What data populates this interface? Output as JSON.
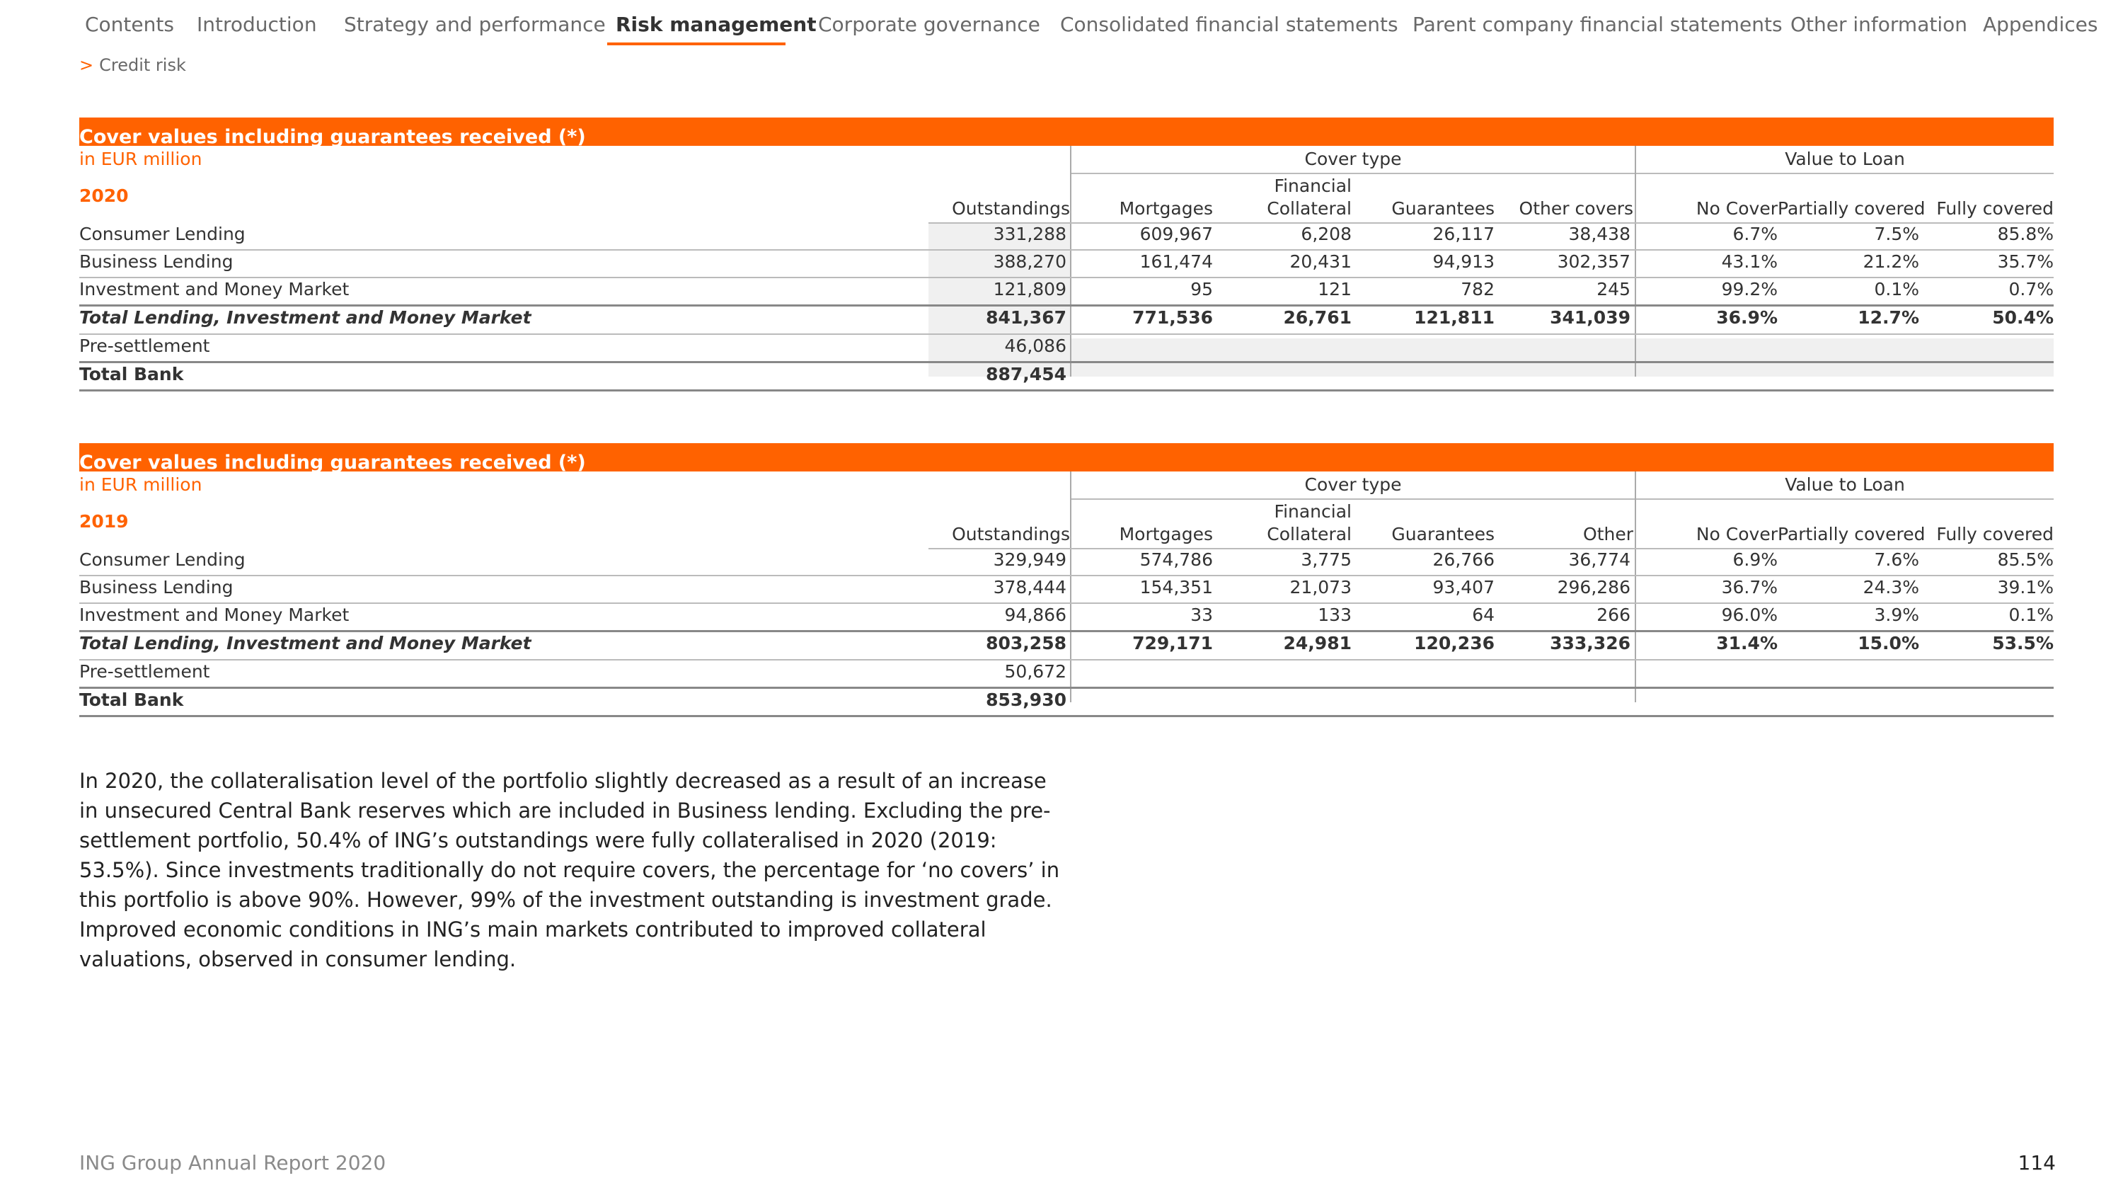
{
  "nav": {
    "items": [
      "Contents",
      "Introduction",
      "Strategy and performance",
      "Risk management",
      "Corporate governance",
      "Consolidated financial statements",
      "Parent company financial statements",
      "Other information",
      "Appendices"
    ],
    "active_index": 3
  },
  "breadcrumb": {
    "chevron": ">",
    "label": "Credit risk"
  },
  "tables": [
    {
      "title": "Cover values including guarantees received (*)",
      "unit": "in EUR million",
      "year": "2020",
      "group_cover": "Cover type",
      "group_ltv": "Value to Loan",
      "col_outstandings": "Outstandings",
      "col_mortgages": "Mortgages",
      "col_financial_1": "Financial",
      "col_financial_2": "Collateral",
      "col_guarantees": "Guarantees",
      "col_other": "Other covers",
      "col_no_cover": "No Cover",
      "col_partial": "Partially covered",
      "col_fully": "Fully covered",
      "rows": [
        {
          "label": "Consumer Lending",
          "values": [
            "331,288",
            "609,967",
            "6,208",
            "26,117",
            "38,438",
            "6.7%",
            "7.5%",
            "85.8%"
          ]
        },
        {
          "label": "Business Lending",
          "values": [
            "388,270",
            "161,474",
            "20,431",
            "94,913",
            "302,357",
            "43.1%",
            "21.2%",
            "35.7%"
          ]
        },
        {
          "label": "Investment and Money Market",
          "values": [
            "121,809",
            "95",
            "121",
            "782",
            "245",
            "99.2%",
            "0.1%",
            "0.7%"
          ]
        },
        {
          "label": "Total Lending, Investment and Money Market",
          "values": [
            "841,367",
            "771,536",
            "26,761",
            "121,811",
            "341,039",
            "36.9%",
            "12.7%",
            "50.4%"
          ]
        },
        {
          "label": "Pre-settlement",
          "values": [
            "46,086",
            "",
            "",
            "",
            "",
            "",
            "",
            ""
          ]
        },
        {
          "label": "Total Bank",
          "values": [
            "887,454",
            "",
            "",
            "",
            "",
            "",
            "",
            ""
          ]
        }
      ]
    },
    {
      "title": "Cover values including guarantees received (*)",
      "unit": "in EUR million",
      "year": "2019",
      "group_cover": "Cover type",
      "group_ltv": "Value to Loan",
      "col_outstandings": "Outstandings",
      "col_mortgages": "Mortgages",
      "col_financial_1": "Financial",
      "col_financial_2": "Collateral",
      "col_guarantees": "Guarantees",
      "col_other": "Other",
      "col_no_cover": "No Cover",
      "col_partial": "Partially covered",
      "col_fully": "Fully covered",
      "rows": [
        {
          "label": "Consumer Lending",
          "values": [
            "329,949",
            "574,786",
            "3,775",
            "26,766",
            "36,774",
            "6.9%",
            "7.6%",
            "85.5%"
          ]
        },
        {
          "label": "Business Lending",
          "values": [
            "378,444",
            "154,351",
            "21,073",
            "93,407",
            "296,286",
            "36.7%",
            "24.3%",
            "39.1%"
          ]
        },
        {
          "label": "Investment and Money Market",
          "values": [
            "94,866",
            "33",
            "133",
            "64",
            "266",
            "96.0%",
            "3.9%",
            "0.1%"
          ]
        },
        {
          "label": "Total Lending, Investment and Money Market",
          "values": [
            "803,258",
            "729,171",
            "24,981",
            "120,236",
            "333,326",
            "31.4%",
            "15.0%",
            "53.5%"
          ]
        },
        {
          "label": "Pre-settlement",
          "values": [
            "50,672",
            "",
            "",
            "",
            "",
            "",
            "",
            ""
          ]
        },
        {
          "label": "Total Bank",
          "values": [
            "853,930",
            "",
            "",
            "",
            "",
            "",
            "",
            ""
          ]
        }
      ]
    }
  ],
  "paragraph": "In 2020, the collateralisation level of the portfolio slightly decreased as a result of an increase in unsecured Central Bank reserves which are included in Business lending. Excluding the pre-settlement portfolio, 50.4% of ING’s outstandings were fully collateralised in 2020 (2019: 53.5%). Since investments traditionally do not require covers, the percentage for ‘no covers’ in this portfolio is above 90%. However, 99% of the investment outstanding is investment grade. Improved economic conditions in ING’s main markets contributed to improved collateral valuations, observed in consumer lending.",
  "footer": {
    "report": "ING Group Annual Report 2020",
    "page": "114"
  },
  "colors": {
    "accent": "#ff6200",
    "shade": "#f0f0f0"
  }
}
